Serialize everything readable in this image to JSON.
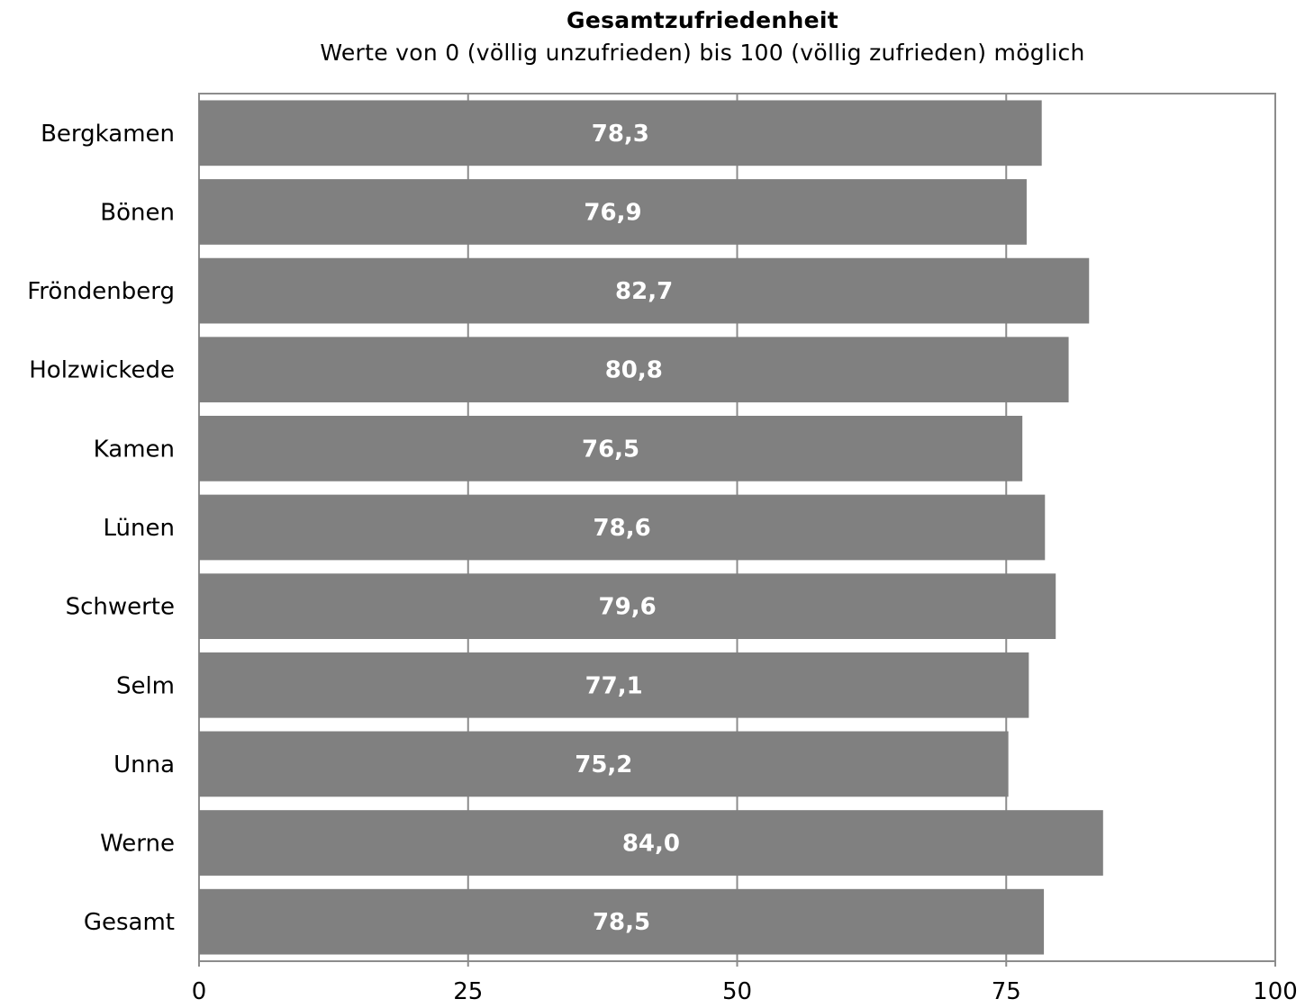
{
  "chart_data": {
    "type": "bar",
    "orientation": "horizontal",
    "title": "Gesamtzufriedenheit",
    "subtitle": "Werte von 0 (völlig unzufrieden) bis 100 (völlig zufrieden) möglich",
    "categories": [
      "Bergkamen",
      "Bönen",
      "Fröndenberg",
      "Holzwickede",
      "Kamen",
      "Lünen",
      "Schwerte",
      "Selm",
      "Unna",
      "Werne",
      "Gesamt"
    ],
    "values": [
      78.3,
      76.9,
      82.7,
      80.8,
      76.5,
      78.6,
      79.6,
      77.1,
      75.2,
      84.0,
      78.5
    ],
    "value_labels": [
      "78,3",
      "76,9",
      "82,7",
      "80,8",
      "76,5",
      "78,6",
      "79,6",
      "77,1",
      "75,2",
      "84,0",
      "78,5"
    ],
    "xlim": [
      0,
      100
    ],
    "xticks": [
      0,
      25,
      50,
      75,
      100
    ],
    "xtick_labels": [
      "0",
      "25",
      "50",
      "75",
      "100"
    ],
    "grid": "vertical",
    "bar_color": "#808080",
    "value_label_color": "#ffffff",
    "legend": "none"
  }
}
